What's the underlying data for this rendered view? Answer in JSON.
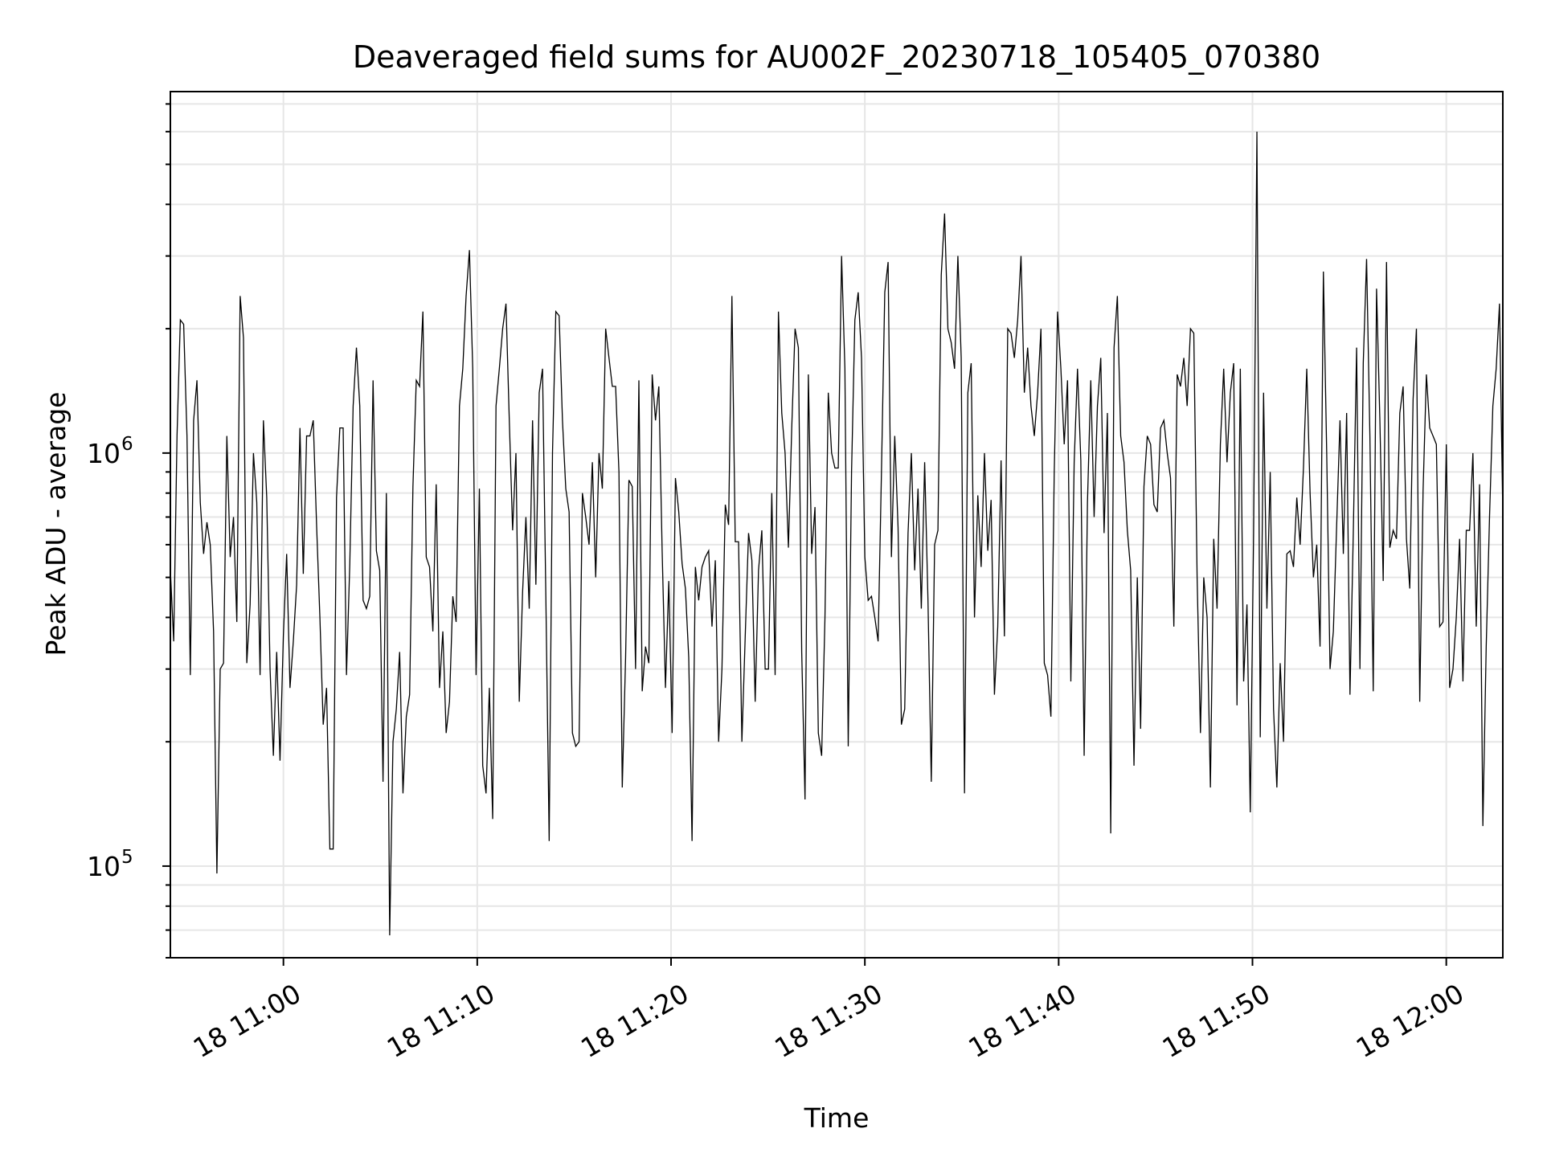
{
  "chart_data": {
    "type": "line",
    "title": "Deaveraged field sums for AU002F_20230718_105405_070380",
    "xlabel": "Time",
    "ylabel": "Peak ADU - average",
    "yscale": "log",
    "ylim": [
      60000,
      7500000
    ],
    "xlim": [
      "2023-07-18 10:54:10",
      "2023-07-18 12:02:55"
    ],
    "grid": true,
    "line_color": "#000000",
    "grid_color": "#e6e6e6",
    "x_ticks": [
      {
        "value": "2023-07-18 11:00",
        "label": "18 11:00"
      },
      {
        "value": "2023-07-18 11:10",
        "label": "18 11:10"
      },
      {
        "value": "2023-07-18 11:20",
        "label": "18 11:20"
      },
      {
        "value": "2023-07-18 11:30",
        "label": "18 11:30"
      },
      {
        "value": "2023-07-18 11:40",
        "label": "18 11:40"
      },
      {
        "value": "2023-07-18 11:50",
        "label": "18 11:50"
      },
      {
        "value": "2023-07-18 12:00",
        "label": "18 12:00"
      }
    ],
    "y_ticks": [
      {
        "value": 100000,
        "label": "10",
        "exponent": "5"
      },
      {
        "value": 1000000,
        "label": "10",
        "exponent": "6"
      }
    ],
    "series": [
      {
        "x_start": "2023-07-18 10:54:10",
        "x_end": "2023-07-18 12:02:55",
        "values": [
          520000,
          350000,
          1100000,
          2100000,
          2050000,
          1100000,
          290000,
          1200000,
          1500000,
          760000,
          570000,
          680000,
          600000,
          370000,
          96000,
          300000,
          310000,
          1100000,
          560000,
          700000,
          390000,
          2400000,
          1900000,
          310000,
          430000,
          1000000,
          760000,
          290000,
          1200000,
          780000,
          300000,
          185000,
          330000,
          180000,
          360000,
          570000,
          270000,
          350000,
          480000,
          1150000,
          510000,
          1100000,
          1100000,
          1200000,
          670000,
          400000,
          220000,
          270000,
          110000,
          110000,
          780000,
          1150000,
          1150000,
          290000,
          540000,
          1300000,
          1800000,
          1300000,
          440000,
          420000,
          450000,
          1500000,
          580000,
          520000,
          160000,
          800000,
          68000,
          200000,
          240000,
          330000,
          150000,
          230000,
          260000,
          830000,
          1500000,
          1450000,
          2200000,
          560000,
          530000,
          370000,
          840000,
          270000,
          370000,
          210000,
          250000,
          450000,
          390000,
          1300000,
          1600000,
          2400000,
          3100000,
          1600000,
          290000,
          820000,
          175000,
          150000,
          270000,
          130000,
          1300000,
          1600000,
          2000000,
          2300000,
          1200000,
          650000,
          1000000,
          250000,
          460000,
          700000,
          420000,
          1200000,
          480000,
          1400000,
          1600000,
          450000,
          115000,
          1000000,
          2200000,
          2150000,
          1200000,
          820000,
          720000,
          210000,
          195000,
          200000,
          800000,
          700000,
          600000,
          950000,
          500000,
          1000000,
          820000,
          2000000,
          1700000,
          1450000,
          1450000,
          900000,
          155000,
          320000,
          860000,
          830000,
          300000,
          1500000,
          265000,
          340000,
          310000,
          1550000,
          1200000,
          1450000,
          580000,
          270000,
          490000,
          210000,
          870000,
          720000,
          540000,
          470000,
          320000,
          115000,
          530000,
          440000,
          530000,
          560000,
          580000,
          380000,
          550000,
          200000,
          300000,
          750000,
          670000,
          2400000,
          610000,
          610000,
          200000,
          360000,
          640000,
          550000,
          250000,
          520000,
          650000,
          300000,
          300000,
          800000,
          290000,
          2200000,
          1250000,
          1000000,
          590000,
          1150000,
          2000000,
          1800000,
          330000,
          145000,
          1550000,
          570000,
          740000,
          210000,
          185000,
          400000,
          1400000,
          1000000,
          920000,
          920000,
          3000000,
          1600000,
          195000,
          900000,
          2100000,
          2450000,
          1700000,
          560000,
          440000,
          450000,
          400000,
          350000,
          900000,
          2450000,
          2900000,
          560000,
          1100000,
          660000,
          220000,
          240000,
          640000,
          1000000,
          520000,
          820000,
          420000,
          950000,
          440000,
          160000,
          600000,
          650000,
          2700000,
          3800000,
          2000000,
          1850000,
          1600000,
          3000000,
          1700000,
          150000,
          1400000,
          1650000,
          400000,
          790000,
          530000,
          1000000,
          580000,
          770000,
          260000,
          380000,
          960000,
          360000,
          2000000,
          1950000,
          1700000,
          2100000,
          3000000,
          1400000,
          1800000,
          1300000,
          1100000,
          1400000,
          2000000,
          310000,
          290000,
          230000,
          900000,
          2200000,
          1600000,
          1050000,
          1500000,
          280000,
          950000,
          1600000,
          960000,
          185000,
          760000,
          1500000,
          700000,
          1300000,
          1700000,
          640000,
          1250000,
          120000,
          1800000,
          2400000,
          1100000,
          950000,
          650000,
          520000,
          175000,
          500000,
          215000,
          830000,
          1100000,
          1050000,
          750000,
          720000,
          1150000,
          1200000,
          1000000,
          870000,
          380000,
          1550000,
          1450000,
          1700000,
          1300000,
          2000000,
          1950000,
          500000,
          210000,
          500000,
          400000,
          155000,
          620000,
          420000,
          1050000,
          1600000,
          950000,
          1400000,
          1650000,
          245000,
          1600000,
          280000,
          430000,
          135000,
          640000,
          6000000,
          205000,
          1400000,
          420000,
          900000,
          240000,
          155000,
          310000,
          200000,
          570000,
          580000,
          530000,
          780000,
          600000,
          920000,
          1600000,
          800000,
          500000,
          600000,
          340000,
          2750000,
          1000000,
          300000,
          370000,
          670000,
          1200000,
          570000,
          1250000,
          260000,
          640000,
          1800000,
          300000,
          1650000,
          2950000,
          1100000,
          265000,
          2500000,
          1200000,
          490000,
          2900000,
          590000,
          650000,
          620000,
          1250000,
          1450000,
          620000,
          470000,
          1350000,
          2000000,
          250000,
          810000,
          1550000,
          1150000,
          1100000,
          1050000,
          380000,
          390000,
          1050000,
          270000,
          300000,
          400000,
          620000,
          280000,
          650000,
          650000,
          1000000,
          380000,
          840000,
          125000,
          340000,
          700000,
          1300000,
          1600000,
          2300000,
          710000
        ]
      }
    ]
  }
}
